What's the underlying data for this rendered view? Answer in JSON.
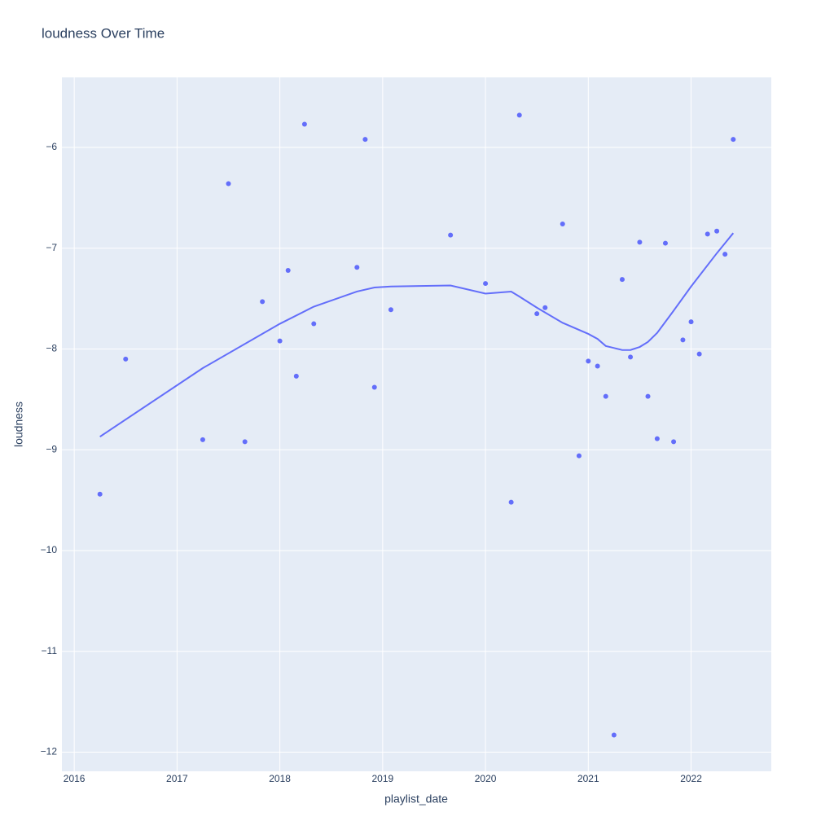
{
  "chart_data": {
    "type": "scatter",
    "title": "loudness Over Time",
    "x_label": "playlist_date",
    "y_label": "loudness",
    "xlim": [
      2015.88,
      2022.78
    ],
    "ylim": [
      -12.19,
      -5.305
    ],
    "xticks": [
      2016,
      2017,
      2018,
      2019,
      2020,
      2021,
      2022
    ],
    "yticks": [
      {
        "value": -6,
        "label": "−6"
      },
      {
        "value": -7,
        "label": "−7"
      },
      {
        "value": -8,
        "label": "−8"
      },
      {
        "value": -9,
        "label": "−9"
      },
      {
        "value": -10,
        "label": "−10"
      },
      {
        "value": -11,
        "label": "−11"
      },
      {
        "value": -12,
        "label": "−12"
      }
    ],
    "grid": true,
    "background": "#e5ecf6",
    "series": [
      {
        "mode": "markers",
        "color": "#636efa",
        "x": [
          2016.25,
          2016.5,
          2017.25,
          2017.5,
          2017.66,
          2017.83,
          2018.0,
          2018.08,
          2018.16,
          2018.24,
          2018.33,
          2018.75,
          2018.83,
          2018.92,
          2019.08,
          2019.66,
          2020.0,
          2020.25,
          2020.33,
          2020.5,
          2020.58,
          2020.75,
          2020.91,
          2021.0,
          2021.09,
          2021.17,
          2021.25,
          2021.33,
          2021.41,
          2021.5,
          2021.58,
          2021.67,
          2021.75,
          2021.83,
          2021.92,
          2022.0,
          2022.08,
          2022.16,
          2022.25,
          2022.33,
          2022.41
        ],
        "values": [
          -9.44,
          -8.1,
          -8.9,
          -6.36,
          -8.92,
          -7.53,
          -7.92,
          -7.22,
          -8.27,
          -5.77,
          -7.75,
          -7.19,
          -5.92,
          -8.38,
          -7.61,
          -6.87,
          -7.35,
          -9.52,
          -5.68,
          -7.65,
          -7.59,
          -6.76,
          -9.06,
          -8.12,
          -8.17,
          -8.47,
          -11.83,
          -7.31,
          -8.08,
          -6.94,
          -8.47,
          -8.89,
          -6.95,
          -8.92,
          -7.91,
          -7.73,
          -8.05,
          -6.86,
          -6.83,
          -7.06,
          -5.92
        ]
      },
      {
        "mode": "lines",
        "color": "#636efa",
        "x": [
          2016.25,
          2017.25,
          2018.0,
          2018.33,
          2018.75,
          2018.92,
          2019.08,
          2019.66,
          2020.0,
          2020.25,
          2020.33,
          2020.5,
          2020.75,
          2021.0,
          2021.09,
          2021.17,
          2021.33,
          2021.41,
          2021.5,
          2021.58,
          2021.67,
          2021.83,
          2022.0,
          2022.25,
          2022.41
        ],
        "values": [
          -8.87,
          -8.19,
          -7.75,
          -7.58,
          -7.43,
          -7.39,
          -7.38,
          -7.37,
          -7.45,
          -7.43,
          -7.48,
          -7.59,
          -7.74,
          -7.85,
          -7.9,
          -7.97,
          -8.01,
          -8.01,
          -7.98,
          -7.93,
          -7.84,
          -7.62,
          -7.38,
          -7.05,
          -6.85
        ]
      }
    ]
  }
}
